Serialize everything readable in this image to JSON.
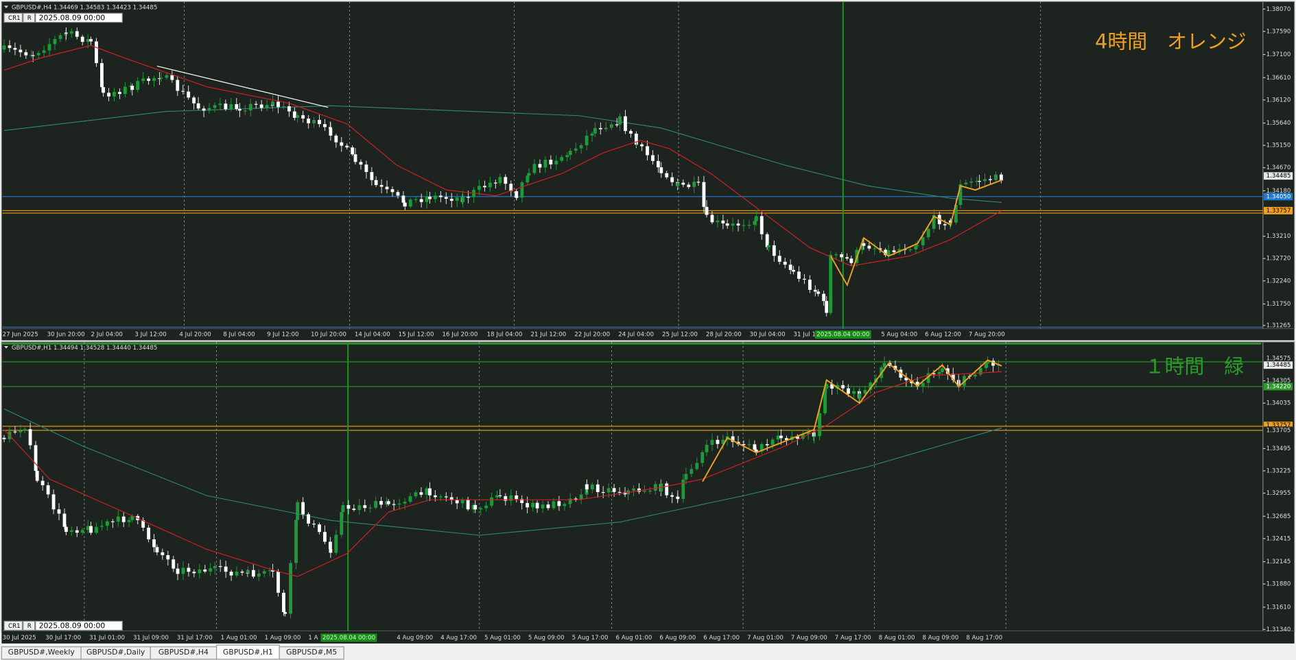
{
  "top": {
    "header": "GBPUSD#,H4  1.34469 1.34583 1.34423 1.34485",
    "cr": "CR1",
    "r": "R",
    "date": "2025.08.09 00:00",
    "annotation": "4時間　オレンジ",
    "price_labels": [
      "1.38070",
      "1.37590",
      "1.37100",
      "1.36610",
      "1.36120",
      "1.35640",
      "1.35150",
      "1.34670",
      "1.34180",
      "1.33210",
      "1.32720",
      "1.32240",
      "1.31750",
      "1.31265"
    ],
    "marker_labels": [
      "1.34485",
      "1.34050",
      "1.33757"
    ],
    "time_labels": [
      "27 Jun 2025",
      "30 Jun 20:00",
      "2 Jul 04:00",
      "3 Jul 12:00",
      "4 Jul 20:00",
      "8 Jul 04:00",
      "9 Jul 12:00",
      "10 Jul 20:00",
      "14 Jul 04:00",
      "15 Jul 12:00",
      "16 Jul 20:00",
      "18 Jul 04:00",
      "21 Jul 12:00",
      "22 Jul 20:00",
      "24 Jul 04:00",
      "25 Jul 12:00",
      "28 Jul 20:00",
      "30 Jul 04:00",
      "31 Jul 1",
      "5 Aug 04:00",
      "6 Aug 12:00",
      "7 Aug 20:00"
    ],
    "cursor_time": "2025.08.04 00:00"
  },
  "bottom": {
    "header": "GBPUSD#,H1  1.34494 1.34528 1.34440 1.34485",
    "cr": "CR1",
    "r": "R",
    "date": "2025.08.09 00:00",
    "annotation": "１時間　緑",
    "price_labels": [
      "1.34305",
      "1.34035",
      "1.33495",
      "1.33225",
      "1.32955",
      "1.32685",
      "1.32415",
      "1.32145",
      "1.31880",
      "1.31610",
      "1.31340"
    ],
    "marker_labels": [
      "1.34575",
      "1.34485",
      "1.34220",
      "1.33757",
      "1.33705"
    ],
    "time_labels": [
      "30 Jul 2025",
      "30 Jul 17:00",
      "31 Jul 01:00",
      "31 Jul 09:00",
      "31 Jul 17:00",
      "1 Aug 01:00",
      "1 Aug 09:00",
      "1 A",
      "4 Aug 09:00",
      "4 Aug 17:00",
      "5 Aug 01:00",
      "5 Aug 09:00",
      "5 Aug 17:00",
      "6 Aug 01:00",
      "6 Aug 09:00",
      "6 Aug 17:00",
      "7 Aug 01:00",
      "7 Aug 09:00",
      "7 Aug 17:00",
      "8 Aug 01:00",
      "8 Aug 09:00",
      "8 Aug 17:00"
    ],
    "cursor_time": "2025.08.04 00:00"
  },
  "tabs": [
    "GBPUSD#,Weekly",
    "GBPUSD#,Daily",
    "GBPUSD#,H4",
    "GBPUSD#,H1",
    "GBPUSD#,M5"
  ]
}
